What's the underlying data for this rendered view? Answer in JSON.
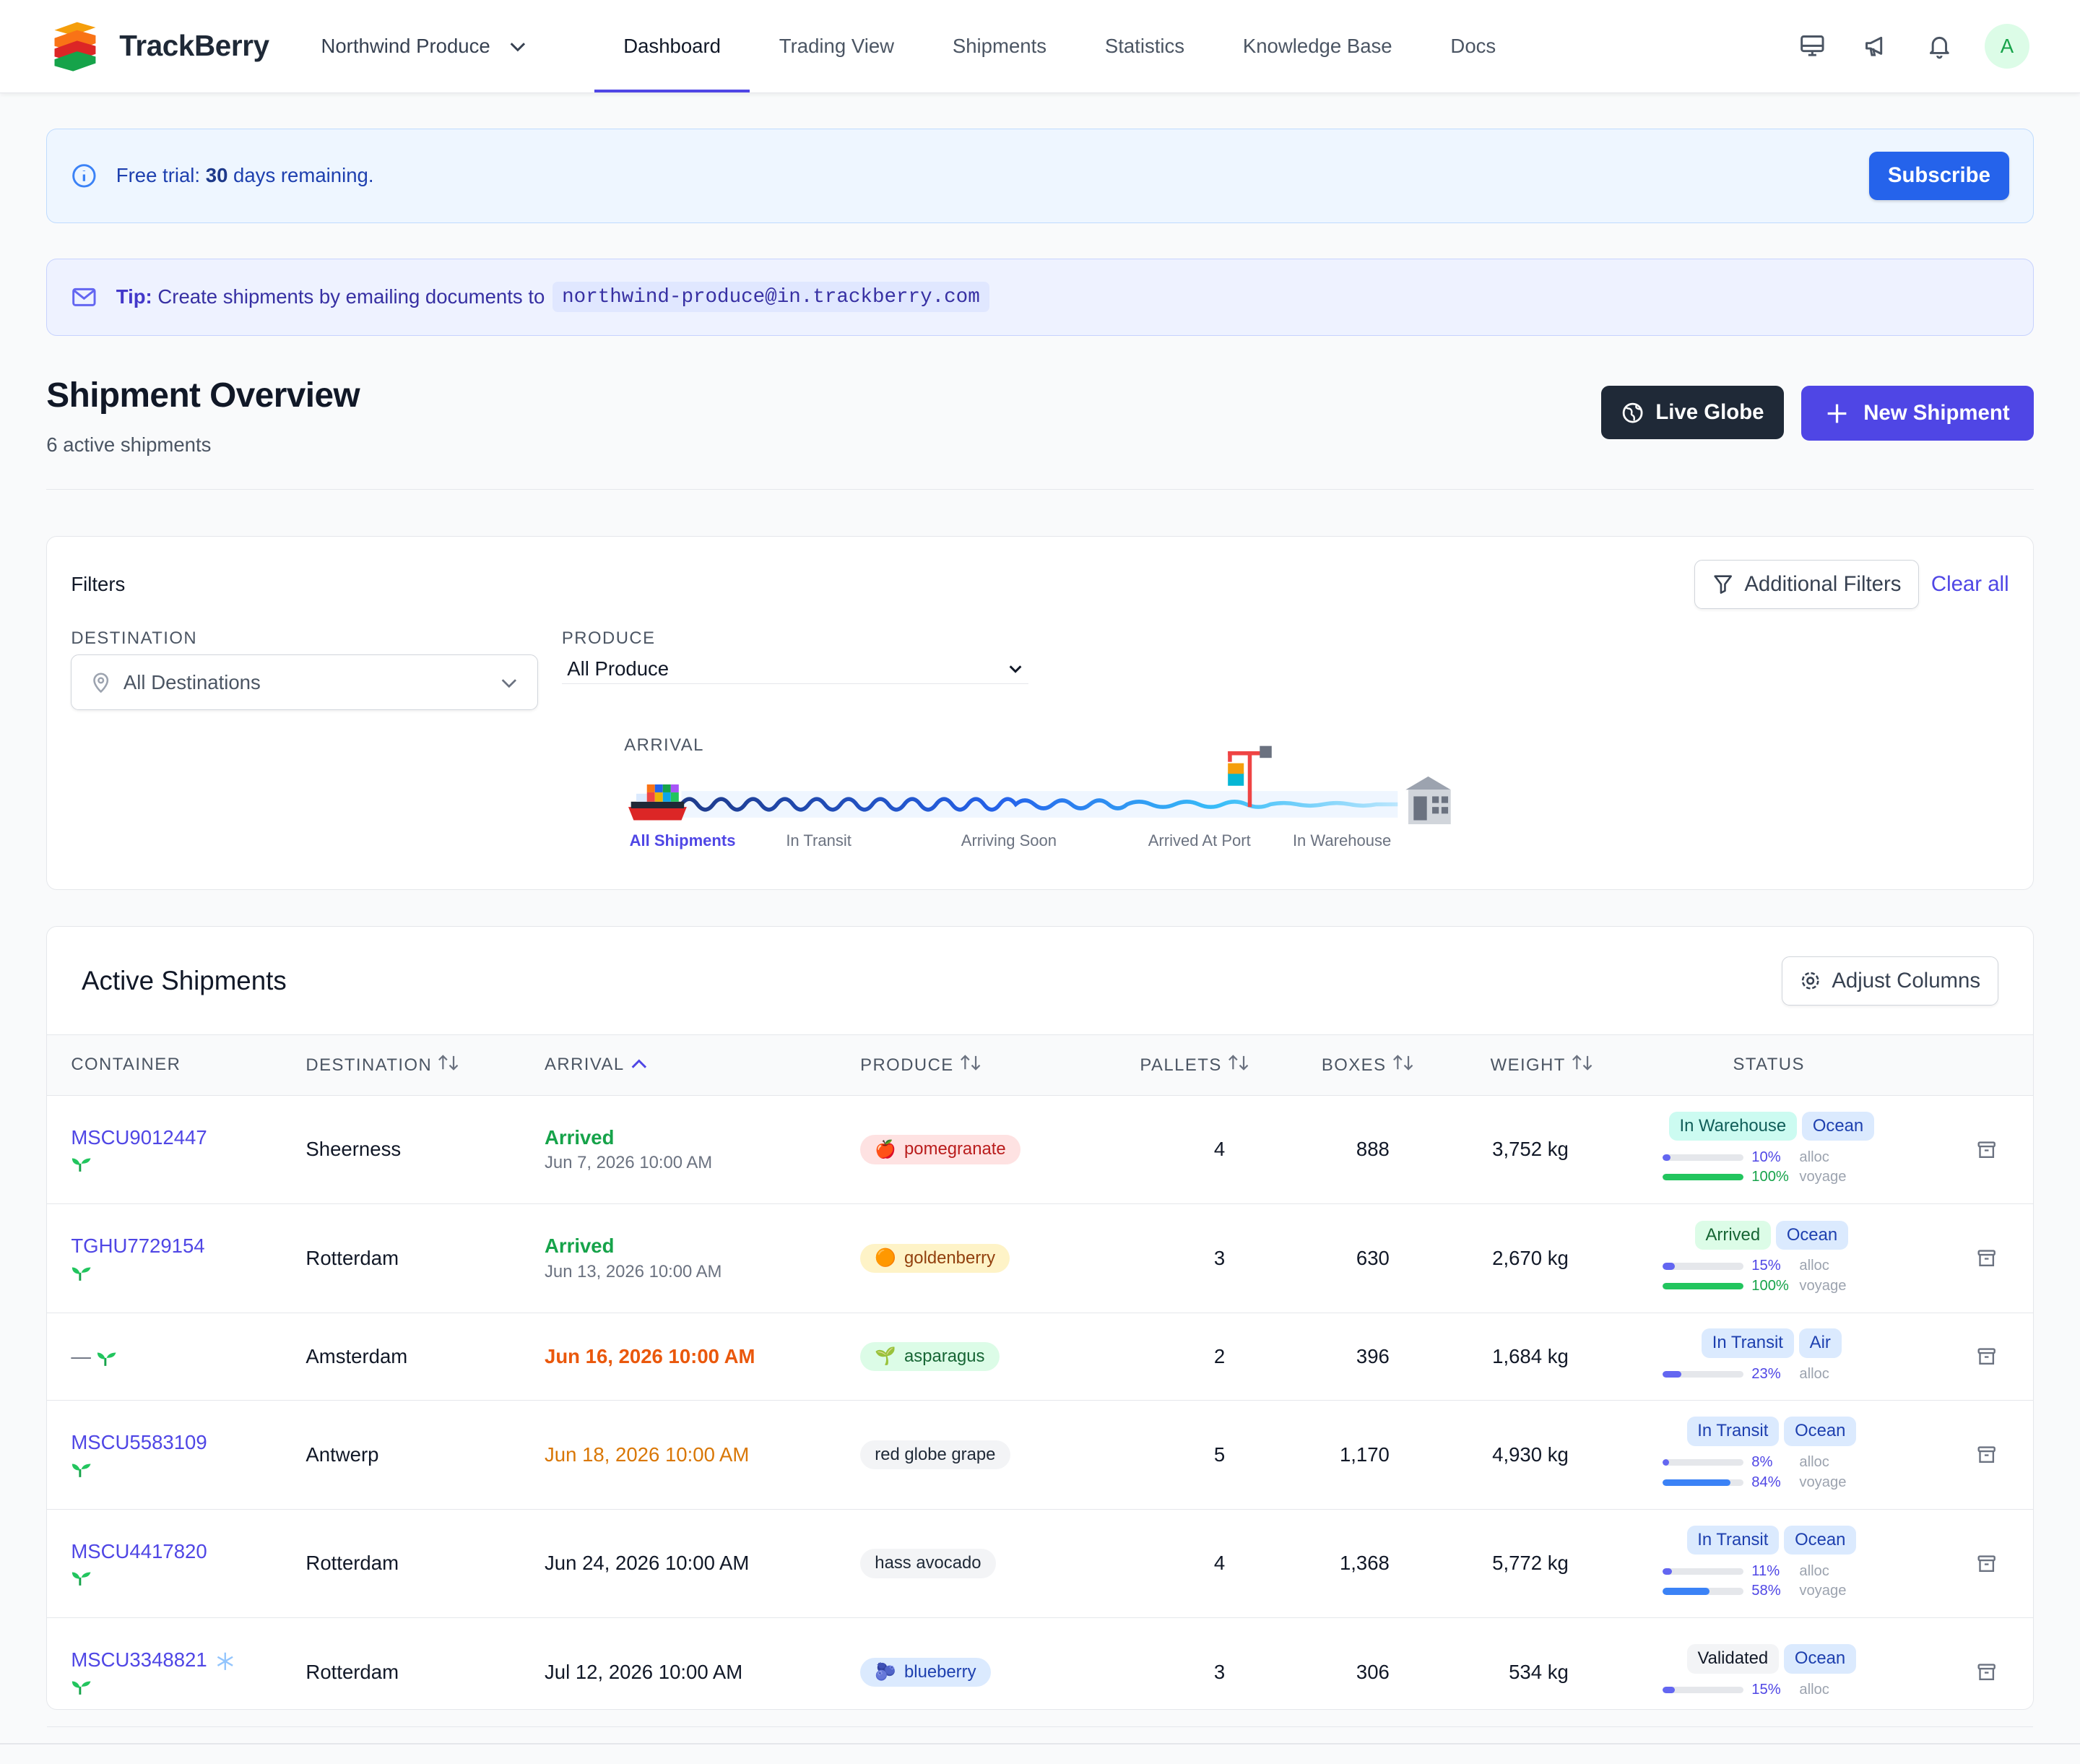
{
  "brand": {
    "name": "TrackBerry",
    "logo_icon": "stacked-layers-logo"
  },
  "org": {
    "name": "Northwind Produce"
  },
  "nav": {
    "items": [
      {
        "label": "Dashboard",
        "active": true
      },
      {
        "label": "Trading View"
      },
      {
        "label": "Shipments"
      },
      {
        "label": "Statistics"
      },
      {
        "label": "Knowledge Base"
      },
      {
        "label": "Docs"
      }
    ],
    "icons": [
      "monitor-icon",
      "megaphone-icon",
      "bell-icon"
    ],
    "avatar": "A"
  },
  "trial": {
    "prefix": "Free trial:",
    "days": "30",
    "suffix": "days remaining.",
    "button": "Subscribe"
  },
  "tip": {
    "label": "Tip:",
    "text": "Create shipments by emailing documents to",
    "email": "northwind-produce@in.trackberry.com"
  },
  "overview": {
    "title": "Shipment Overview",
    "subtitle": "6 active shipments",
    "live_globe": "Live Globe",
    "new_shipment": "New Shipment"
  },
  "filters": {
    "title": "Filters",
    "additional": "Additional Filters",
    "clear": "Clear all",
    "destination": {
      "label": "DESTINATION",
      "value": "All Destinations"
    },
    "produce": {
      "label": "PRODUCE",
      "value": "All Produce"
    },
    "arrival": {
      "label": "ARRIVAL",
      "stages": [
        "All Shipments",
        "In Transit",
        "Arriving Soon",
        "Arrived At Port",
        "In Warehouse"
      ],
      "active_stage": "All Shipments"
    }
  },
  "table": {
    "title": "Active Shipments",
    "adjust": "Adjust Columns",
    "headers": {
      "container": "CONTAINER",
      "destination": "DESTINATION",
      "arrival": "ARRIVAL",
      "produce": "PRODUCE",
      "pallets": "PALLETS",
      "boxes": "BOXES",
      "weight": "WEIGHT",
      "status": "STATUS"
    },
    "rows": [
      {
        "container": "MSCU9012447",
        "destination": "Sheerness",
        "arrival_status": "Arrived",
        "arrival_date": "Jun 7, 2026 10:00 AM",
        "produce": "pomegranate",
        "produce_emoji": "🍎",
        "pallets": "4",
        "boxes": "888",
        "weight": "3,752 kg",
        "status": "In Warehouse",
        "mode": "Ocean",
        "alloc": "10%",
        "voyage": "100%",
        "alloc_level": 0.1,
        "voyage_level": 1.0
      },
      {
        "container": "TGHU7729154",
        "destination": "Rotterdam",
        "arrival_status": "Arrived",
        "arrival_date": "Jun 13, 2026 10:00 AM",
        "produce": "goldenberry",
        "produce_emoji": "🟠",
        "pallets": "3",
        "boxes": "630",
        "weight": "2,670 kg",
        "status": "Arrived",
        "mode": "Ocean",
        "alloc": "15%",
        "voyage": "100%",
        "alloc_level": 0.15,
        "voyage_level": 1.0
      },
      {
        "container": "—",
        "destination": "Amsterdam",
        "arrival_date": "Jun 16, 2026 10:00 AM",
        "produce": "asparagus",
        "produce_emoji": "🌱",
        "pallets": "2",
        "boxes": "396",
        "weight": "1,684 kg",
        "status": "In Transit",
        "mode": "Air",
        "alloc": "23%",
        "alloc_level": 0.23
      },
      {
        "container": "MSCU5583109",
        "destination": "Antwerp",
        "arrival_date": "Jun 18, 2026 10:00 AM",
        "produce": "red globe grape",
        "pallets": "5",
        "boxes": "1,170",
        "weight": "4,930 kg",
        "status": "In Transit",
        "mode": "Ocean",
        "alloc": "8%",
        "voyage": "84%",
        "alloc_level": 0.08,
        "voyage_level": 0.84
      },
      {
        "container": "MSCU4417820",
        "destination": "Rotterdam",
        "arrival_date": "Jun 24, 2026 10:00 AM",
        "produce": "hass avocado",
        "pallets": "4",
        "boxes": "1,368",
        "weight": "5,772 kg",
        "status": "In Transit",
        "mode": "Ocean",
        "alloc": "11%",
        "voyage": "58%",
        "alloc_level": 0.11,
        "voyage_level": 0.58
      },
      {
        "container": "MSCU3348821",
        "destination": "Rotterdam",
        "arrival_date": "Jul 12, 2026 10:00 AM",
        "produce": "blueberry",
        "produce_emoji": "🫐",
        "pallets": "3",
        "boxes": "306",
        "weight": "534 kg",
        "status": "Validated",
        "mode": "Ocean",
        "alloc": "15%",
        "alloc_level": 0.15
      }
    ],
    "bar_labels": {
      "alloc": "alloc",
      "voyage": "voyage"
    }
  },
  "colors": {
    "accent": "#4f46e5",
    "subscribe": "#2563eb",
    "arrived": "#16a34a",
    "overdue": "#ea580c",
    "soon": "#d97706",
    "voyage_done": "#22c55e",
    "voyage_progress": "#3b82f6",
    "alloc": "#6366f1"
  }
}
